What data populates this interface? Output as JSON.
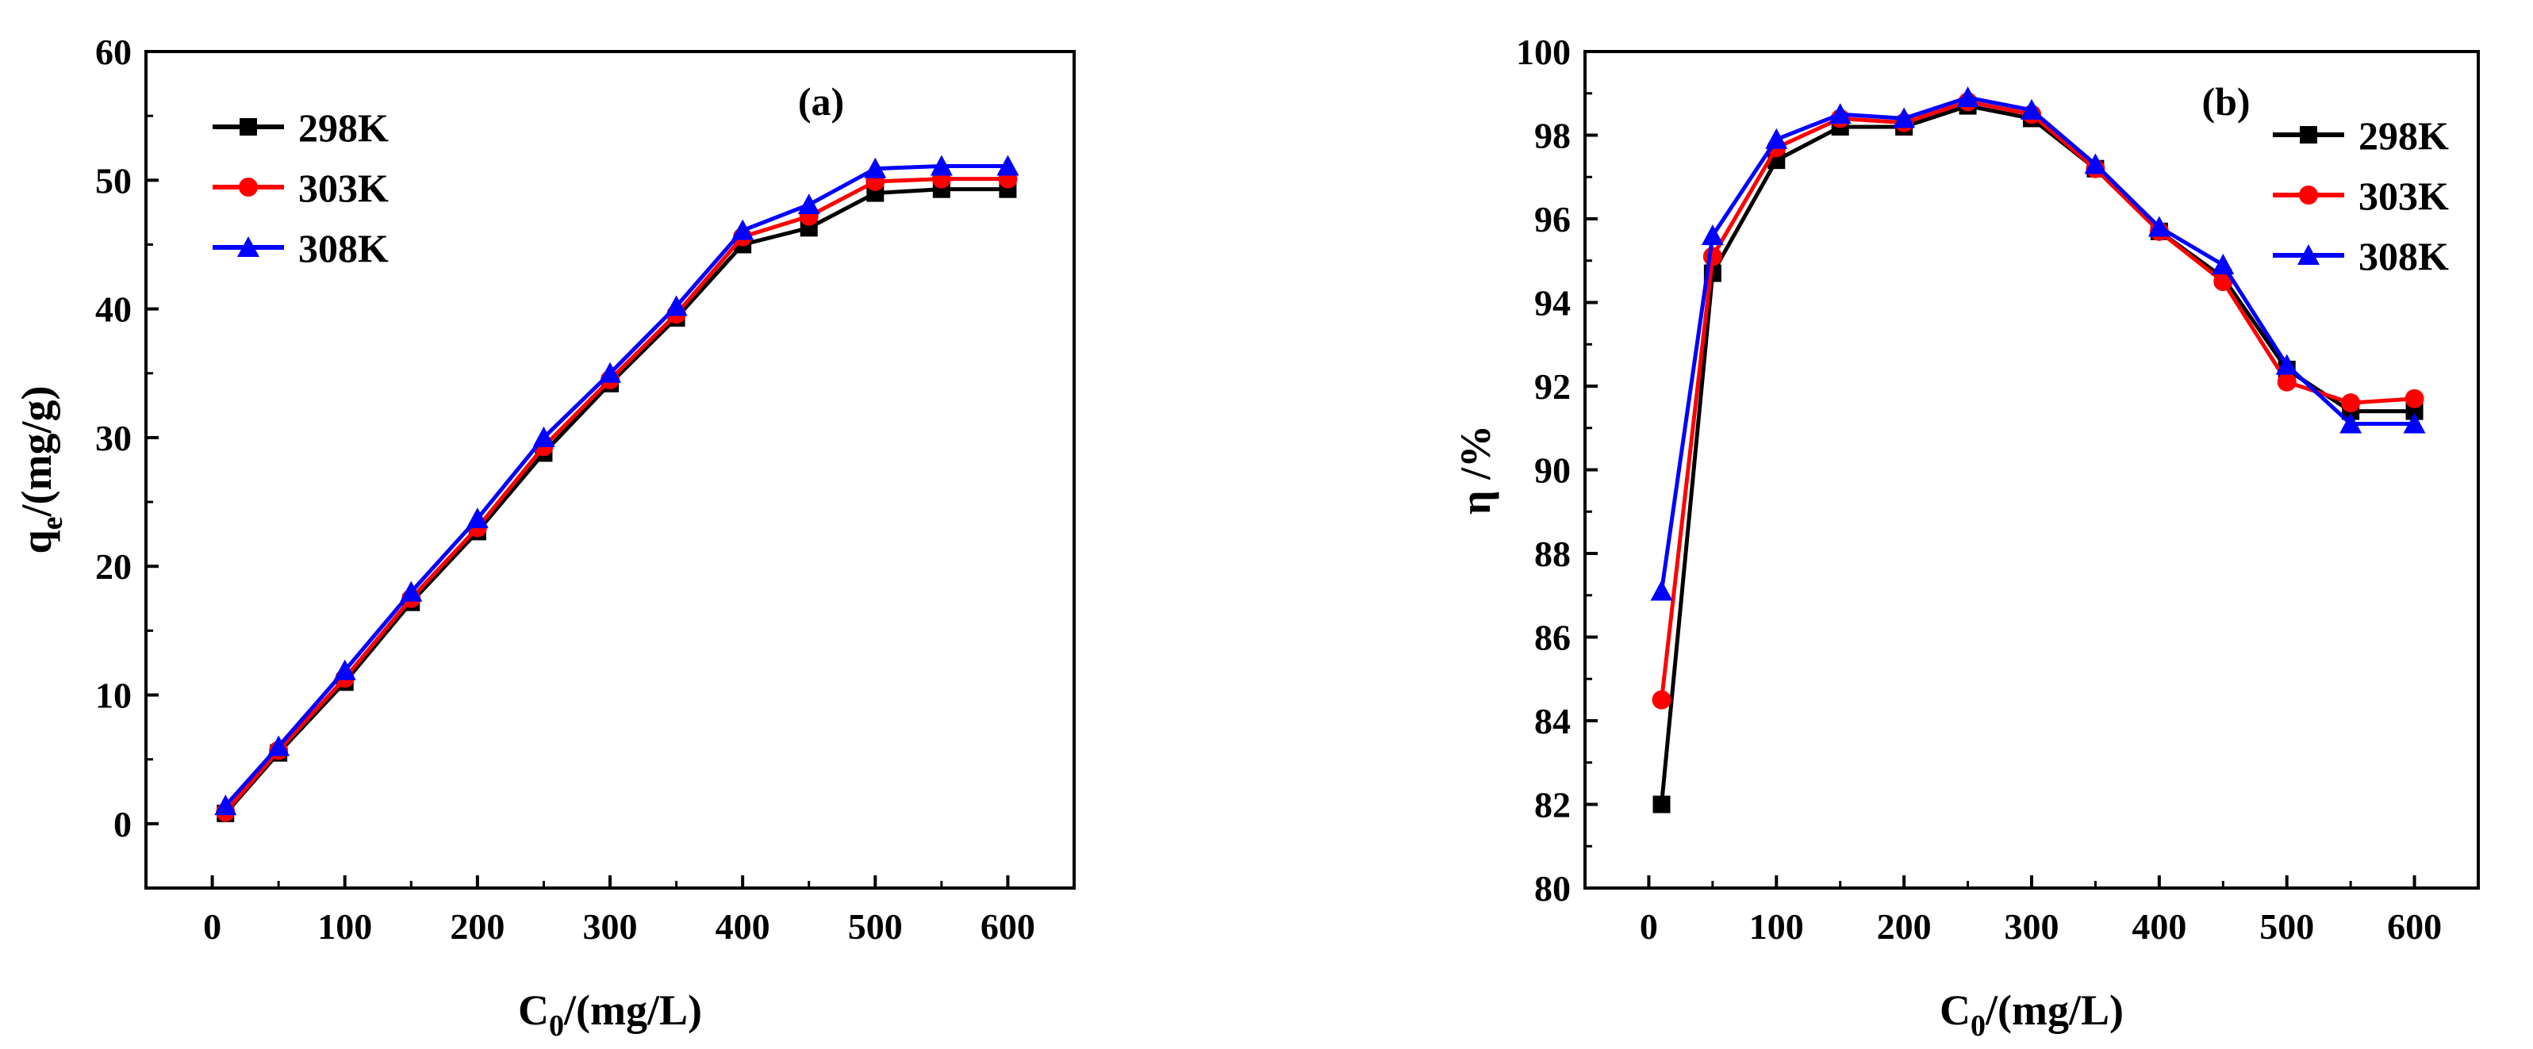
{
  "chart_data": [
    {
      "type": "line",
      "panel_label": "(a)",
      "xlabel": "C",
      "xlabel_sub": "0",
      "xlabel_unit": "/(mg/L)",
      "ylabel": "q",
      "ylabel_sub": "e",
      "ylabel_unit": "/(mg/g)",
      "xlim": [
        -50,
        650
      ],
      "ylim": [
        -5,
        60
      ],
      "xticks": [
        0,
        100,
        200,
        300,
        400,
        500,
        600
      ],
      "yticks": [
        0,
        10,
        20,
        30,
        40,
        50,
        60
      ],
      "legend_position": "top-left",
      "x": [
        10,
        50,
        100,
        150,
        200,
        250,
        300,
        350,
        400,
        450,
        500,
        550,
        600
      ],
      "series": [
        {
          "name": "298K",
          "color": "#000000",
          "marker": "square",
          "values": [
            0.8,
            5.5,
            11.0,
            17.2,
            22.7,
            28.8,
            34.2,
            39.3,
            45.0,
            46.3,
            49.0,
            49.3,
            49.3
          ]
        },
        {
          "name": "303K",
          "color": "#ff0000",
          "marker": "circle",
          "values": [
            0.9,
            5.7,
            11.3,
            17.5,
            23.0,
            29.3,
            34.5,
            39.6,
            45.6,
            47.2,
            49.9,
            50.1,
            50.1
          ]
        },
        {
          "name": "308K",
          "color": "#0000ff",
          "marker": "triangle",
          "values": [
            1.4,
            6.0,
            11.9,
            18.0,
            23.7,
            30.0,
            35.0,
            40.2,
            46.1,
            48.1,
            50.9,
            51.1,
            51.1
          ]
        }
      ]
    },
    {
      "type": "line",
      "panel_label": "(b)",
      "xlabel": "C",
      "xlabel_sub": "0",
      "xlabel_unit": "/(mg/L)",
      "ylabel": "η /%",
      "xlim": [
        -50,
        650
      ],
      "ylim": [
        80,
        100
      ],
      "xticks": [
        0,
        100,
        200,
        300,
        400,
        500,
        600
      ],
      "yticks": [
        80,
        82,
        84,
        86,
        88,
        90,
        92,
        94,
        96,
        98,
        100
      ],
      "legend_position": "top-right",
      "x": [
        10,
        50,
        100,
        150,
        200,
        250,
        300,
        350,
        400,
        450,
        500,
        550,
        600
      ],
      "series": [
        {
          "name": "298K",
          "color": "#000000",
          "marker": "square",
          "values": [
            82.0,
            94.7,
            97.4,
            98.2,
            98.2,
            98.7,
            98.4,
            97.2,
            95.7,
            94.6,
            92.4,
            91.4,
            91.4
          ]
        },
        {
          "name": "303K",
          "color": "#ff0000",
          "marker": "circle",
          "values": [
            84.5,
            95.1,
            97.7,
            98.4,
            98.3,
            98.8,
            98.5,
            97.2,
            95.7,
            94.5,
            92.1,
            91.6,
            91.7
          ]
        },
        {
          "name": "308K",
          "color": "#0000ff",
          "marker": "triangle",
          "values": [
            87.1,
            95.6,
            97.9,
            98.5,
            98.4,
            98.9,
            98.6,
            97.3,
            95.8,
            94.9,
            92.5,
            91.1,
            91.1
          ]
        }
      ]
    }
  ]
}
